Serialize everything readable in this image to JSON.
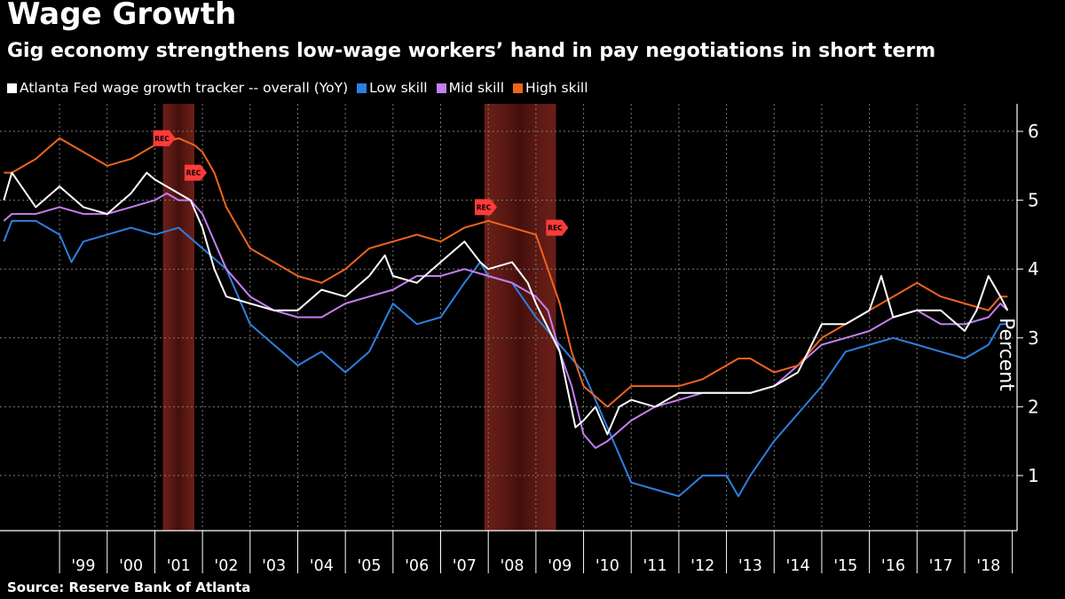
{
  "title": "Wage Growth",
  "subtitle": "Gig economy strengthens low-wage workers’ hand in pay negotiations in short term",
  "source": "Source: Reserve Bank of Atlanta",
  "legend": [
    {
      "label": "Atlanta Fed wage growth tracker -- overall (YoY)",
      "color": "#ffffff"
    },
    {
      "label": "Low skill",
      "color": "#2e7fe0"
    },
    {
      "label": "Mid skill",
      "color": "#c47ff0"
    },
    {
      "label": "High skill",
      "color": "#f0641e"
    }
  ],
  "chart_data": {
    "type": "line",
    "ylabel": "Percent",
    "ylim": [
      0.2,
      6.4
    ],
    "yticks": [
      1,
      2,
      3,
      4,
      5,
      6
    ],
    "xlim": [
      1997.75,
      2019.1
    ],
    "x_tick_labels": [
      "'99",
      "'00",
      "'01",
      "'02",
      "'03",
      "'04",
      "'05",
      "'06",
      "'07",
      "'08",
      "'09",
      "'10",
      "'11",
      "'12",
      "'13",
      "'14",
      "'15",
      "'16",
      "'17",
      "'18"
    ],
    "x_tick_years": [
      1999,
      2000,
      2001,
      2002,
      2003,
      2004,
      2005,
      2006,
      2007,
      2008,
      2009,
      2010,
      2011,
      2012,
      2013,
      2014,
      2015,
      2016,
      2017,
      2018
    ],
    "grid": true,
    "recessions": [
      {
        "start": 2001.17,
        "end": 2001.83,
        "start_label": "REC",
        "end_label": "REC"
      },
      {
        "start": 2007.92,
        "end": 2009.42,
        "start_label": "REC",
        "end_label": "REC"
      }
    ],
    "series": [
      {
        "name": "Atlanta Fed wage growth tracker -- overall (YoY)",
        "color": "#ffffff",
        "x": [
          1997.83,
          1998.0,
          1998.5,
          1999.0,
          1999.5,
          2000.0,
          2000.5,
          2000.83,
          2001.0,
          2001.25,
          2001.5,
          2001.75,
          2002.0,
          2002.25,
          2002.5,
          2003.0,
          2003.5,
          2004.0,
          2004.5,
          2005.0,
          2005.5,
          2005.83,
          2006.0,
          2006.5,
          2007.0,
          2007.5,
          2007.83,
          2008.0,
          2008.5,
          2008.83,
          2009.0,
          2009.5,
          2009.83,
          2010.0,
          2010.25,
          2010.5,
          2010.75,
          2011.0,
          2011.5,
          2012.0,
          2012.5,
          2013.0,
          2013.5,
          2014.0,
          2014.5,
          2015.0,
          2015.5,
          2016.0,
          2016.25,
          2016.5,
          2017.0,
          2017.5,
          2018.0,
          2018.25,
          2018.5,
          2018.75,
          2018.9
        ],
        "y": [
          5.0,
          5.4,
          4.9,
          5.2,
          4.9,
          4.8,
          5.1,
          5.4,
          5.3,
          5.2,
          5.1,
          5.0,
          4.6,
          4.0,
          3.6,
          3.5,
          3.4,
          3.4,
          3.7,
          3.6,
          3.9,
          4.2,
          3.9,
          3.8,
          4.1,
          4.4,
          4.1,
          4.0,
          4.1,
          3.8,
          3.5,
          2.8,
          1.7,
          1.8,
          2.0,
          1.6,
          2.0,
          2.1,
          2.0,
          2.2,
          2.2,
          2.2,
          2.2,
          2.3,
          2.5,
          3.2,
          3.2,
          3.4,
          3.9,
          3.3,
          3.4,
          3.4,
          3.1,
          3.4,
          3.9,
          3.6,
          3.4
        ]
      },
      {
        "name": "Low skill",
        "color": "#2e7fe0",
        "x": [
          1997.83,
          1998.0,
          1998.5,
          1999.0,
          1999.25,
          1999.5,
          2000.0,
          2000.5,
          2001.0,
          2001.5,
          2002.0,
          2002.5,
          2003.0,
          2003.5,
          2004.0,
          2004.5,
          2005.0,
          2005.5,
          2006.0,
          2006.5,
          2007.0,
          2007.5,
          2007.83,
          2008.0,
          2008.5,
          2009.0,
          2009.5,
          2010.0,
          2010.5,
          2011.0,
          2011.5,
          2012.0,
          2012.5,
          2013.0,
          2013.25,
          2013.5,
          2014.0,
          2014.5,
          2015.0,
          2015.5,
          2016.0,
          2016.5,
          2017.0,
          2017.5,
          2018.0,
          2018.5,
          2018.75,
          2018.9
        ],
        "y": [
          4.4,
          4.7,
          4.7,
          4.5,
          4.1,
          4.4,
          4.5,
          4.6,
          4.5,
          4.6,
          4.3,
          4.0,
          3.2,
          2.9,
          2.6,
          2.8,
          2.5,
          2.8,
          3.5,
          3.2,
          3.3,
          3.8,
          4.1,
          3.9,
          3.8,
          3.3,
          2.9,
          2.5,
          1.7,
          0.9,
          0.8,
          0.7,
          1.0,
          1.0,
          0.7,
          1.0,
          1.5,
          1.9,
          2.3,
          2.8,
          2.9,
          3.0,
          2.9,
          2.8,
          2.7,
          2.9,
          3.2,
          3.2
        ]
      },
      {
        "name": "Mid skill",
        "color": "#c47ff0",
        "x": [
          1997.83,
          1998.0,
          1998.5,
          1999.0,
          1999.5,
          2000.0,
          2000.5,
          2001.0,
          2001.25,
          2001.5,
          2001.75,
          2002.0,
          2002.5,
          2003.0,
          2003.5,
          2004.0,
          2004.5,
          2005.0,
          2005.5,
          2006.0,
          2006.5,
          2007.0,
          2007.5,
          2008.0,
          2008.5,
          2009.0,
          2009.25,
          2009.5,
          2009.75,
          2010.0,
          2010.25,
          2010.5,
          2011.0,
          2011.5,
          2012.0,
          2012.5,
          2013.0,
          2013.5,
          2014.0,
          2014.5,
          2015.0,
          2015.5,
          2016.0,
          2016.5,
          2017.0,
          2017.5,
          2018.0,
          2018.5,
          2018.75,
          2018.9
        ],
        "y": [
          4.7,
          4.8,
          4.8,
          4.9,
          4.8,
          4.8,
          4.9,
          5.0,
          5.1,
          5.0,
          5.0,
          4.8,
          4.0,
          3.6,
          3.4,
          3.3,
          3.3,
          3.5,
          3.6,
          3.7,
          3.9,
          3.9,
          4.0,
          3.9,
          3.8,
          3.6,
          3.4,
          2.8,
          2.3,
          1.6,
          1.4,
          1.5,
          1.8,
          2.0,
          2.1,
          2.2,
          2.2,
          2.2,
          2.3,
          2.6,
          2.9,
          3.0,
          3.1,
          3.3,
          3.4,
          3.2,
          3.2,
          3.3,
          3.5,
          3.4
        ]
      },
      {
        "name": "High skill",
        "color": "#f0641e",
        "x": [
          1997.83,
          1998.0,
          1998.5,
          1999.0,
          1999.5,
          2000.0,
          2000.5,
          2001.0,
          2001.5,
          2001.83,
          2002.0,
          2002.25,
          2002.5,
          2003.0,
          2003.5,
          2004.0,
          2004.5,
          2005.0,
          2005.5,
          2006.0,
          2006.5,
          2007.0,
          2007.5,
          2008.0,
          2008.5,
          2009.0,
          2009.25,
          2009.5,
          2009.75,
          2010.0,
          2010.5,
          2011.0,
          2011.5,
          2012.0,
          2012.5,
          2013.0,
          2013.25,
          2013.5,
          2014.0,
          2014.5,
          2015.0,
          2015.5,
          2016.0,
          2016.5,
          2017.0,
          2017.5,
          2018.0,
          2018.5,
          2018.75,
          2018.9
        ],
        "y": [
          5.4,
          5.4,
          5.6,
          5.9,
          5.7,
          5.5,
          5.6,
          5.8,
          5.9,
          5.8,
          5.7,
          5.4,
          4.9,
          4.3,
          4.1,
          3.9,
          3.8,
          4.0,
          4.3,
          4.4,
          4.5,
          4.4,
          4.6,
          4.7,
          4.6,
          4.5,
          4.0,
          3.5,
          2.8,
          2.3,
          2.0,
          2.3,
          2.3,
          2.3,
          2.4,
          2.6,
          2.7,
          2.7,
          2.5,
          2.6,
          3.0,
          3.2,
          3.4,
          3.6,
          3.8,
          3.6,
          3.5,
          3.4,
          3.6,
          3.6
        ]
      }
    ]
  }
}
